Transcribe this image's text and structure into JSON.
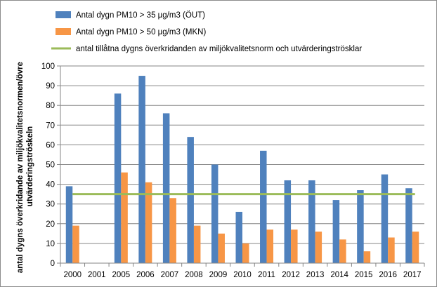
{
  "chart_data": {
    "type": "bar",
    "categories": [
      "2000",
      "2001",
      "2005",
      "2006",
      "2007",
      "2008",
      "2009",
      "2010",
      "2011",
      "2012",
      "2013",
      "2014",
      "2015",
      "2016",
      "2017"
    ],
    "series": [
      {
        "name": "Antal dygn PM10 > 35 µg/m3 (ÖUT)",
        "color": "#4f81bd",
        "values": [
          39,
          null,
          86,
          95,
          76,
          64,
          50,
          26,
          57,
          42,
          42,
          32,
          37,
          45,
          38
        ]
      },
      {
        "name": "Antal dygn PM10 > 50 µg/m3 (MKN)",
        "color": "#f79646",
        "values": [
          19,
          null,
          46,
          41,
          33,
          19,
          15,
          10,
          17,
          17,
          16,
          12,
          6,
          13,
          16
        ]
      }
    ],
    "reference_line": {
      "name": "antal tillåtna dygns överkridanden av miljökvalitetsnorm och utvärderingströsklar",
      "value": 35,
      "color": "#9bbb59"
    },
    "ylabel_lines": [
      "antal dygns överkridande av miljökvalitetsnormen/övre",
      "utvärderingströskeln"
    ],
    "ylim": [
      0,
      100
    ],
    "yticks": [
      0,
      10,
      20,
      30,
      40,
      50,
      60,
      70,
      80,
      90,
      100
    ],
    "grid": true,
    "legend_position": "top"
  }
}
